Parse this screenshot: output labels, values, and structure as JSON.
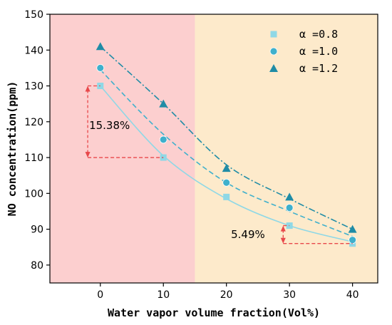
{
  "chart_data": {
    "type": "scatter",
    "title": "",
    "xlabel": "Water vapor volume fraction(Vol%)",
    "ylabel": "NO concentration(ppm)",
    "xlim": [
      -8,
      44
    ],
    "ylim": [
      75,
      150
    ],
    "x_ticks": [
      0,
      10,
      20,
      30,
      40
    ],
    "y_ticks": [
      80,
      90,
      100,
      110,
      120,
      130,
      140,
      150
    ],
    "x_tick_labels": [
      "0",
      "10",
      "20",
      "30",
      "40"
    ],
    "y_tick_labels": [
      "80",
      "90",
      "100",
      "110",
      "120",
      "130",
      "140",
      "150"
    ],
    "grid": false,
    "legend_position": "top-right",
    "regions": [
      {
        "x_range": [
          -8,
          15
        ],
        "color": "#fccfcf"
      },
      {
        "x_range": [
          15,
          44
        ],
        "color": "#fdeacb"
      }
    ],
    "series": [
      {
        "name": "α =0.8",
        "marker": "square",
        "color": "#8fd8e6",
        "line_style": "solid",
        "x": [
          0,
          10,
          20,
          30,
          40
        ],
        "values": [
          130,
          110,
          99,
          91,
          86
        ],
        "fit": [
          130,
          110.5,
          98.5,
          91,
          86.5
        ]
      },
      {
        "name": "α =1.0",
        "marker": "circle",
        "color": "#3fb0cc",
        "line_style": "dashed",
        "x": [
          0,
          10,
          20,
          30,
          40
        ],
        "values": [
          135,
          115,
          103,
          96,
          87
        ],
        "fit": [
          134.5,
          116.5,
          103,
          95,
          88
        ]
      },
      {
        "name": "α =1.2",
        "marker": "triangle",
        "color": "#1f8ca6",
        "line_style": "dashdot",
        "x": [
          0,
          10,
          20,
          30,
          40
        ],
        "values": [
          141,
          125,
          107,
          99,
          90
        ],
        "fit": [
          141,
          125,
          108,
          98.5,
          90
        ]
      }
    ],
    "annotations": [
      {
        "text": "15.38%",
        "arrow_x": -2,
        "y_top": 130,
        "y_bottom": 110,
        "guide_top": [
          -2,
          0
        ],
        "guide_bottom": [
          -2,
          10
        ],
        "text_x": -2,
        "text_y": 119
      },
      {
        "text": "5.49%",
        "arrow_x": 29,
        "y_top": 91,
        "y_bottom": 86,
        "guide_top": [
          29,
          30
        ],
        "guide_bottom": [
          29,
          40
        ],
        "text_x": 20.5,
        "text_y": 88.5
      }
    ],
    "annotation_color": "#e8474a"
  }
}
